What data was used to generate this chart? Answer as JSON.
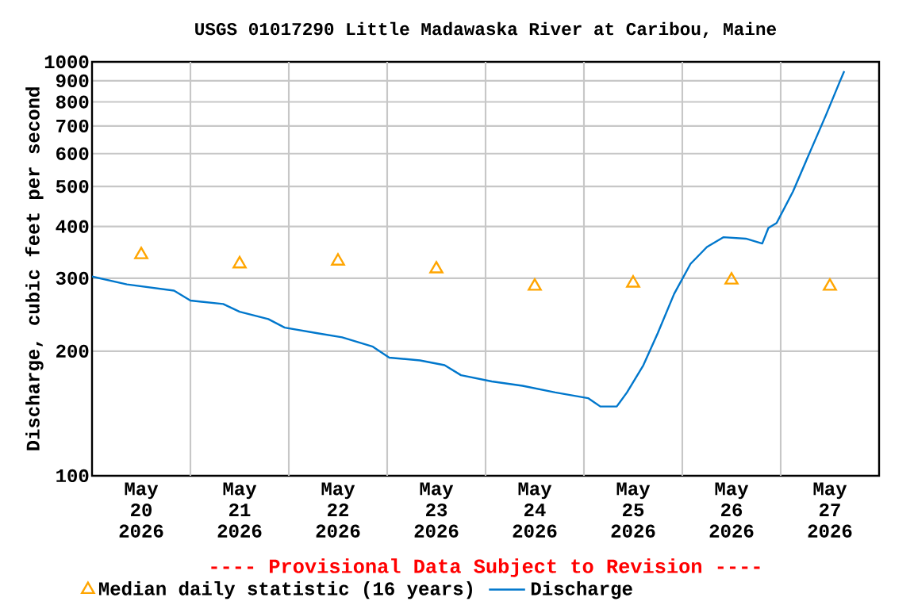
{
  "chart_data": {
    "type": "line",
    "title": "USGS 01017290 Little Madawaska River at Caribou, Maine",
    "ylabel": "Discharge, cubic feet per second",
    "annotations": [
      "---- Provisional Data Subject to Revision ----"
    ],
    "xlim": [
      "2026-05-20T00:00",
      "2026-05-28T00:00"
    ],
    "xticks": [
      {
        "value": "2026-05-20T12:00",
        "label": "May 20 2026"
      },
      {
        "value": "2026-05-21T12:00",
        "label": "May 21 2026"
      },
      {
        "value": "2026-05-22T12:00",
        "label": "May 22 2026"
      },
      {
        "value": "2026-05-23T12:00",
        "label": "May 23 2026"
      },
      {
        "value": "2026-05-24T12:00",
        "label": "May 24 2026"
      },
      {
        "value": "2026-05-25T12:00",
        "label": "May 25 2026"
      },
      {
        "value": "2026-05-26T12:00",
        "label": "May 26 2026"
      },
      {
        "value": "2026-05-27T12:00",
        "label": "May 27 2026"
      }
    ],
    "ylim": [
      100,
      1000
    ],
    "yticks": [
      100,
      200,
      300,
      400,
      500,
      600,
      700,
      800,
      900,
      1000
    ],
    "log": "y",
    "grid": true,
    "legend": "bottom",
    "series": [
      {
        "name": "Median daily statistic (16 years)",
        "type": "scatter",
        "marker": "triangle",
        "color": "#ffa500",
        "x": [
          "2026-05-20T12:00",
          "2026-05-21T12:00",
          "2026-05-22T12:00",
          "2026-05-23T12:00",
          "2026-05-24T12:00",
          "2026-05-25T12:00",
          "2026-05-26T12:00",
          "2026-05-27T12:00"
        ],
        "values": [
          342,
          325,
          330,
          316,
          287,
          292,
          297,
          287
        ]
      },
      {
        "name": "Discharge",
        "marker": "none",
        "color": "#0077cc",
        "x": [
          "2026-05-20T00:00",
          "2026-05-20T08:30",
          "2026-05-20T20:00",
          "2026-05-21T00:00",
          "2026-05-21T08:00",
          "2026-05-21T12:00",
          "2026-05-21T19:00",
          "2026-05-21T23:00",
          "2026-05-22T07:00",
          "2026-05-22T13:00",
          "2026-05-22T20:30",
          "2026-05-23T00:30",
          "2026-05-23T08:00",
          "2026-05-23T14:00",
          "2026-05-23T18:00",
          "2026-05-24T01:30",
          "2026-05-24T09:00",
          "2026-05-24T17:00",
          "2026-05-25T01:00",
          "2026-05-25T04:00",
          "2026-05-25T08:00",
          "2026-05-25T10:30",
          "2026-05-25T14:30",
          "2026-05-25T18:00",
          "2026-05-25T22:00",
          "2026-05-26T02:00",
          "2026-05-26T06:00",
          "2026-05-26T10:00",
          "2026-05-26T15:30",
          "2026-05-26T19:30",
          "2026-05-26T21:00",
          "2026-05-26T23:00",
          "2026-05-27T03:00",
          "2026-05-27T07:00",
          "2026-05-27T11:00",
          "2026-05-27T14:30",
          "2026-05-27T15:30"
        ],
        "values": [
          303,
          290,
          280,
          265,
          260,
          249,
          239,
          228,
          221,
          216,
          205,
          193,
          190,
          185,
          175,
          169,
          165,
          159,
          154,
          147,
          147,
          159,
          185,
          221,
          275,
          325,
          357,
          377,
          374,
          364,
          397,
          408,
          486,
          601,
          742,
          900,
          949
        ]
      }
    ]
  }
}
